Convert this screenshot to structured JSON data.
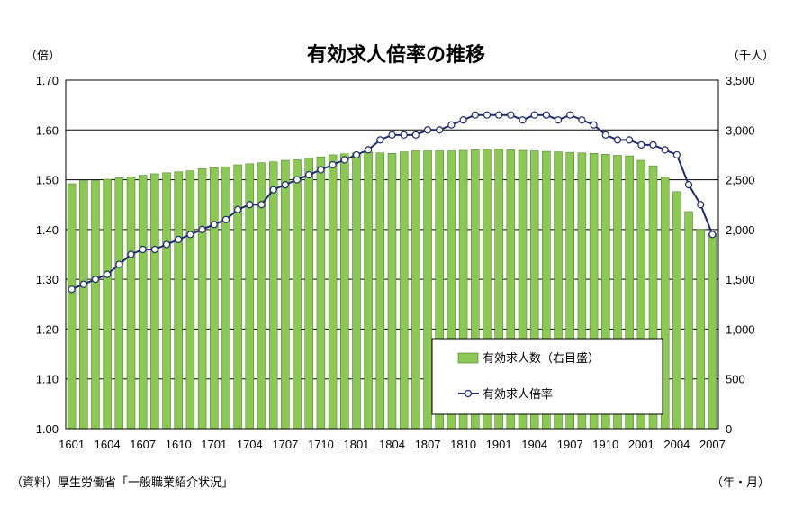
{
  "chart_data": {
    "type": "bar",
    "title": "有効求人倍率の推移",
    "ylabel_left": "（倍）",
    "ylabel_right": "（千人）",
    "xlabel": "（年・月）",
    "source": "（資料）厚生労働省「一般職業紹介状況」",
    "ylim_left": [
      1.0,
      1.7
    ],
    "ylim_right": [
      0,
      3500
    ],
    "yticks_left": [
      "1.00",
      "1.10",
      "1.20",
      "1.30",
      "1.40",
      "1.50",
      "1.60",
      "1.70"
    ],
    "yticks_right": [
      "0",
      "500",
      "1,000",
      "1,500",
      "2,000",
      "2,500",
      "3,000",
      "3,500"
    ],
    "xtick_labels": [
      "1601",
      "1604",
      "1607",
      "1610",
      "1701",
      "1704",
      "1707",
      "1710",
      "1801",
      "1804",
      "1807",
      "1810",
      "1901",
      "1904",
      "1907",
      "1910",
      "2001",
      "2004",
      "2007"
    ],
    "grid": true,
    "legend_position": "bottom-right",
    "categories": [
      "1601",
      "1602",
      "1603",
      "1604",
      "1605",
      "1606",
      "1607",
      "1608",
      "1609",
      "1610",
      "1611",
      "1612",
      "1701",
      "1702",
      "1703",
      "1704",
      "1705",
      "1706",
      "1707",
      "1708",
      "1709",
      "1710",
      "1711",
      "1712",
      "1801",
      "1802",
      "1803",
      "1804",
      "1805",
      "1806",
      "1807",
      "1808",
      "1809",
      "1810",
      "1811",
      "1812",
      "1901",
      "1902",
      "1903",
      "1904",
      "1905",
      "1906",
      "1907",
      "1908",
      "1909",
      "1910",
      "1911",
      "1912",
      "2001",
      "2002",
      "2003",
      "2004",
      "2005",
      "2006",
      "2007"
    ],
    "series": [
      {
        "name": "有効求人数（右目盛）",
        "axis": "right",
        "kind": "bar",
        "color": "#8dc755",
        "values": [
          2460,
          2490,
          2490,
          2505,
          2520,
          2530,
          2545,
          2560,
          2570,
          2580,
          2590,
          2610,
          2620,
          2630,
          2650,
          2660,
          2670,
          2680,
          2695,
          2700,
          2715,
          2730,
          2750,
          2760,
          2770,
          2775,
          2770,
          2765,
          2780,
          2790,
          2790,
          2790,
          2790,
          2795,
          2800,
          2805,
          2810,
          2800,
          2795,
          2790,
          2785,
          2780,
          2775,
          2770,
          2765,
          2755,
          2745,
          2740,
          2695,
          2640,
          2530,
          2380,
          2180,
          2000,
          1960
        ]
      },
      {
        "name": "有効求人倍率",
        "axis": "left",
        "kind": "line",
        "color": "#1f2a6e",
        "values": [
          1.28,
          1.29,
          1.3,
          1.31,
          1.33,
          1.35,
          1.36,
          1.36,
          1.37,
          1.38,
          1.39,
          1.4,
          1.41,
          1.42,
          1.44,
          1.45,
          1.45,
          1.48,
          1.49,
          1.5,
          1.51,
          1.52,
          1.53,
          1.54,
          1.55,
          1.56,
          1.58,
          1.59,
          1.59,
          1.59,
          1.6,
          1.6,
          1.61,
          1.62,
          1.63,
          1.63,
          1.63,
          1.63,
          1.62,
          1.63,
          1.63,
          1.62,
          1.63,
          1.62,
          1.61,
          1.59,
          1.58,
          1.58,
          1.57,
          1.57,
          1.56,
          1.55,
          1.49,
          1.45,
          1.39
        ]
      }
    ]
  }
}
